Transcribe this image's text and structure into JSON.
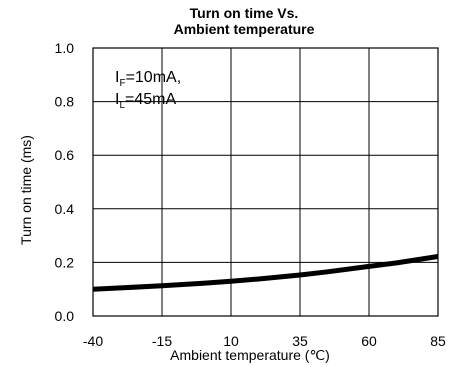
{
  "chart_data": {
    "type": "line",
    "title": [
      "Turn on time Vs.",
      "Ambient temperature"
    ],
    "xlabel": "Ambient temperature (℃)",
    "ylabel": "Turn on time (ms)",
    "xlim": [
      -40,
      85
    ],
    "ylim": [
      0.0,
      1.0
    ],
    "x_ticks": [
      -40,
      -15,
      10,
      35,
      60,
      85
    ],
    "y_ticks": [
      "0.0",
      "0.2",
      "0.4",
      "0.6",
      "0.8",
      "1.0"
    ],
    "grid": true,
    "annotations": [
      {
        "main": "I",
        "sub": "F",
        "rest": "=10mA,"
      },
      {
        "main": "I",
        "sub": "L",
        "rest": "=45mA"
      }
    ],
    "series": [
      {
        "x": [
          -40,
          -30,
          -15,
          0,
          10,
          20,
          35,
          45,
          60,
          70,
          85
        ],
        "y": [
          0.1,
          0.105,
          0.113,
          0.122,
          0.13,
          0.138,
          0.153,
          0.165,
          0.185,
          0.198,
          0.222
        ]
      }
    ]
  }
}
